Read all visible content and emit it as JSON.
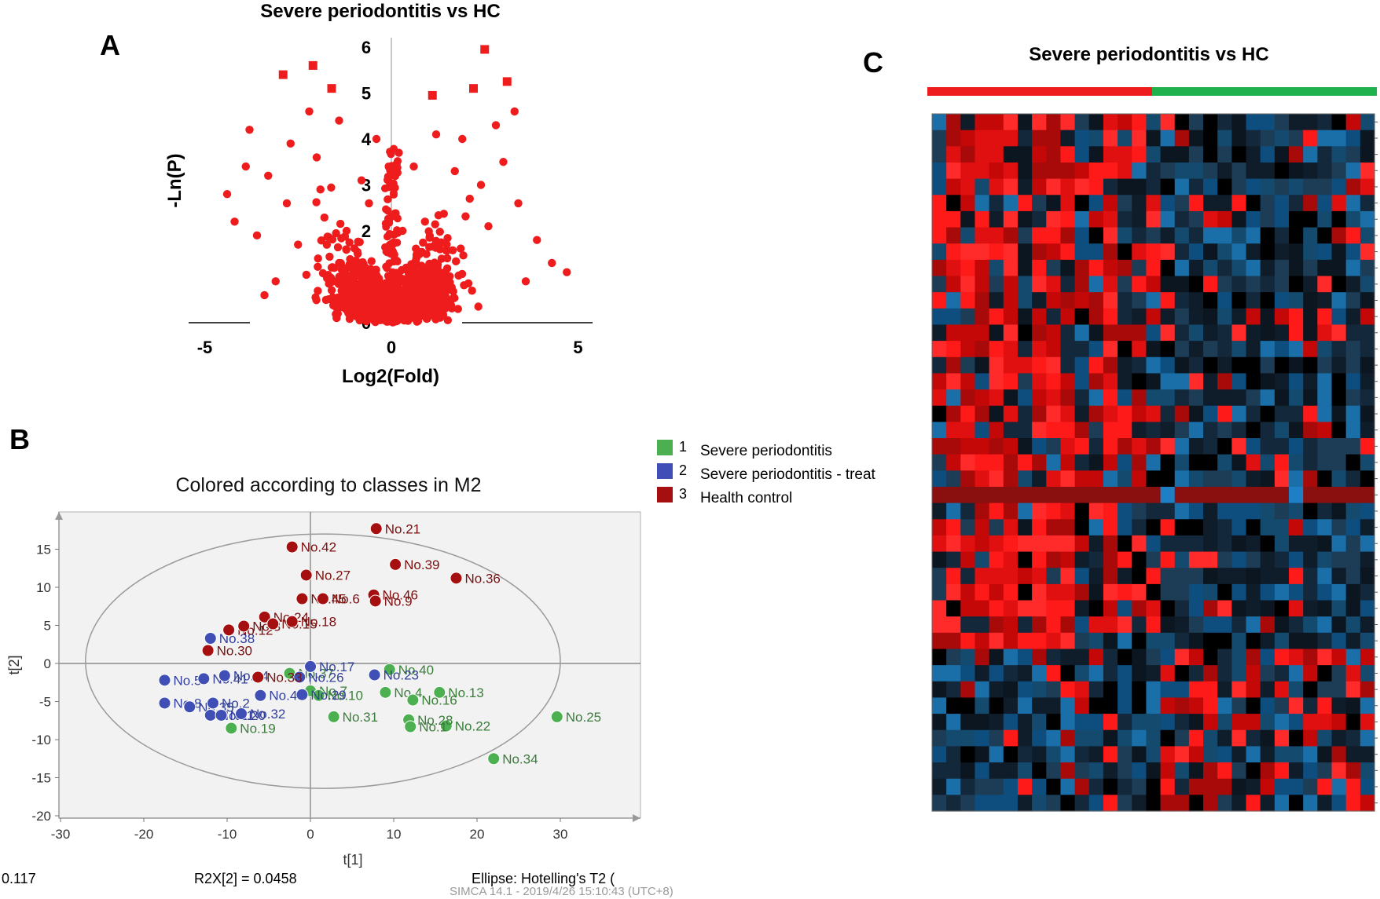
{
  "panels": {
    "a": {
      "letter": "A",
      "title": "Severe periodontitis vs HC",
      "xlabel": "Log2(Fold)",
      "ylabel": "-Ln(P)"
    },
    "b": {
      "letter": "B",
      "title": "Colored according to classes in M2",
      "xlabel": "t[1]",
      "ylabel": "t[2]",
      "footer_left": "0.117",
      "footer_mid": "R2X[2] = 0.0458",
      "footer_right": "Ellipse: Hotelling's T2 (",
      "stamp": "SIMCA 14.1 - 2019/4/26 15:10:43 (UTC+8)"
    },
    "c": {
      "letter": "C",
      "title": "Severe periodontitis vs HC"
    }
  },
  "colors": {
    "volcano_red": "#ee1c1c",
    "group1": "#4caf50",
    "group2": "#3f4fb5",
    "group3": "#a50f0f",
    "label1": "#3b7d3b",
    "label2": "#33409a",
    "label3": "#7a1010",
    "hm_red": "#ff1a1a",
    "hm_dark": "#0f1c2a",
    "hm_blue": "#0d4e7e",
    "bar_red": "#ee1c1c",
    "bar_green": "#1fb14b"
  },
  "chart_data": [
    {
      "type": "scatter",
      "panel": "A",
      "title": "Severe periodontitis vs HC",
      "xlabel": "Log2(Fold)",
      "ylabel": "-Ln(P)",
      "xlim": [
        -5,
        5
      ],
      "ylim": [
        0,
        6
      ],
      "xticks": [
        "-5",
        "0",
        "5"
      ],
      "yticks": [
        "0",
        "1",
        "2",
        "3",
        "4",
        "5",
        "6"
      ],
      "highlighted_points": [
        [
          -2.9,
          5.4
        ],
        [
          -2.1,
          5.6
        ],
        [
          -1.6,
          5.1
        ],
        [
          2.5,
          5.95
        ],
        [
          3.1,
          5.25
        ],
        [
          2.2,
          5.1
        ],
        [
          1.1,
          4.95
        ]
      ],
      "points": [
        [
          -3.3,
          3.2
        ],
        [
          -3.9,
          3.4
        ],
        [
          -4.2,
          2.2
        ],
        [
          -3.6,
          1.9
        ],
        [
          -2.8,
          2.6
        ],
        [
          -2.5,
          1.7
        ],
        [
          -1.9,
          2.9
        ],
        [
          -1.2,
          2.0
        ],
        [
          -0.8,
          3.1
        ],
        [
          -2.2,
          4.6
        ],
        [
          -3.8,
          4.2
        ],
        [
          -1.4,
          4.4
        ],
        [
          -0.6,
          2.6
        ],
        [
          -2.0,
          3.6
        ],
        [
          -1.6,
          1.2
        ],
        [
          -0.9,
          1.5
        ],
        [
          -3.1,
          0.9
        ],
        [
          -4.4,
          2.8
        ],
        [
          -2.7,
          3.9
        ],
        [
          -0.4,
          4.0
        ],
        [
          0.3,
          2.0
        ],
        [
          0.6,
          3.4
        ],
        [
          0.9,
          2.2
        ],
        [
          1.3,
          1.6
        ],
        [
          1.7,
          3.3
        ],
        [
          2.1,
          2.7
        ],
        [
          2.6,
          2.1
        ],
        [
          3.0,
          3.5
        ],
        [
          3.4,
          2.6
        ],
        [
          3.9,
          1.8
        ],
        [
          4.3,
          1.3
        ],
        [
          4.7,
          1.1
        ],
        [
          1.9,
          4.0
        ],
        [
          2.8,
          4.3
        ],
        [
          1.2,
          4.1
        ],
        [
          3.3,
          4.6
        ],
        [
          2.4,
          3.0
        ],
        [
          0.4,
          1.2
        ],
        [
          1.0,
          0.7
        ],
        [
          -1.0,
          0.6
        ],
        [
          0.2,
          3.7
        ],
        [
          -0.2,
          0.5
        ],
        [
          -3.4,
          0.6
        ],
        [
          3.6,
          0.9
        ]
      ]
    },
    {
      "type": "scatter",
      "panel": "B",
      "title": "Colored according to classes in M2",
      "xlabel": "t[1]",
      "ylabel": "t[2]",
      "xlim": [
        -30,
        40
      ],
      "ylim": [
        -20,
        20
      ],
      "xticks": [
        "-30",
        "-20",
        "-10",
        "0",
        "10",
        "20",
        "30"
      ],
      "yticks": [
        "-20",
        "-15",
        "-10",
        "-5",
        "0",
        "5",
        "10",
        "15"
      ],
      "legend": [
        {
          "num": "1",
          "label": "Severe   periodontitis"
        },
        {
          "num": "2",
          "label": "Severe   periodontitis  - treat"
        },
        {
          "num": "3",
          "label": "Health   control"
        }
      ],
      "series": [
        {
          "name": "Severe   periodontitis",
          "points": [
            {
              "label": "No.40",
              "x": 9.5,
              "y": -0.8
            },
            {
              "label": "No.4",
              "x": 9.0,
              "y": -3.8
            },
            {
              "label": "No.13",
              "x": 15.5,
              "y": -3.8
            },
            {
              "label": "No.16",
              "x": 12.3,
              "y": -4.8
            },
            {
              "label": "No.22",
              "x": 16.3,
              "y": -8.2
            },
            {
              "label": "No.28",
              "x": 11.8,
              "y": -7.4
            },
            {
              "label": "No.1",
              "x": 12.0,
              "y": -8.3
            },
            {
              "label": "No.34",
              "x": 22.0,
              "y": -12.5
            },
            {
              "label": "No.25",
              "x": 29.6,
              "y": -7.0
            },
            {
              "label": "No.7",
              "x": 0.0,
              "y": -3.6
            },
            {
              "label": "No.10",
              "x": 1.0,
              "y": -4.2
            },
            {
              "label": "No.31",
              "x": 2.8,
              "y": -7.0
            },
            {
              "label": "No.19",
              "x": -9.5,
              "y": -8.5
            },
            {
              "label": "No.37",
              "x": -2.5,
              "y": -1.3
            }
          ]
        },
        {
          "name": "Severe   periodontitis  - treat",
          "points": [
            {
              "label": "No.38",
              "x": -12.0,
              "y": 3.3
            },
            {
              "label": "No.5",
              "x": -17.5,
              "y": -2.2
            },
            {
              "label": "No.41",
              "x": -12.8,
              "y": -2.0
            },
            {
              "label": "No.14",
              "x": -10.3,
              "y": -1.6
            },
            {
              "label": "No.8",
              "x": -17.5,
              "y": -5.2
            },
            {
              "label": "No.35",
              "x": -14.5,
              "y": -5.7
            },
            {
              "label": "No.2",
              "x": -11.7,
              "y": -5.2
            },
            {
              "label": "No.11",
              "x": -12.0,
              "y": -6.8
            },
            {
              "label": "No.20",
              "x": -10.7,
              "y": -6.8
            },
            {
              "label": "No.32",
              "x": -8.3,
              "y": -6.6
            },
            {
              "label": "No.44",
              "x": -6.0,
              "y": -4.2
            },
            {
              "label": "No.26",
              "x": -1.3,
              "y": -1.8
            },
            {
              "label": "No.17",
              "x": 0.0,
              "y": -0.4
            },
            {
              "label": "No.23",
              "x": 7.7,
              "y": -1.5
            },
            {
              "label": "No.29",
              "x": -1.0,
              "y": -4.1
            }
          ]
        },
        {
          "name": "Health   control",
          "points": [
            {
              "label": "No.21",
              "x": 7.9,
              "y": 17.7
            },
            {
              "label": "No.42",
              "x": -2.2,
              "y": 15.3
            },
            {
              "label": "No.39",
              "x": 10.2,
              "y": 13.0
            },
            {
              "label": "No.36",
              "x": 17.5,
              "y": 11.2
            },
            {
              "label": "No.27",
              "x": -0.5,
              "y": 11.6
            },
            {
              "label": "No.46",
              "x": 7.6,
              "y": 9.0
            },
            {
              "label": "No.9",
              "x": 7.8,
              "y": 8.2
            },
            {
              "label": "No.45",
              "x": -1.0,
              "y": 8.5
            },
            {
              "label": "No.6",
              "x": 1.5,
              "y": 8.5
            },
            {
              "label": "No.12",
              "x": -9.8,
              "y": 4.4
            },
            {
              "label": "No.3",
              "x": -8.0,
              "y": 4.9
            },
            {
              "label": "No.24",
              "x": -5.5,
              "y": 6.1
            },
            {
              "label": "No.15",
              "x": -4.5,
              "y": 5.2
            },
            {
              "label": "No.18",
              "x": -2.2,
              "y": 5.5
            },
            {
              "label": "No.30",
              "x": -12.3,
              "y": 1.7
            },
            {
              "label": "No.33",
              "x": -6.3,
              "y": -1.8
            }
          ]
        }
      ]
    },
    {
      "type": "heatmap",
      "panel": "C",
      "title": "Severe periodontitis vs HC",
      "group_bar": [
        "red",
        "green"
      ],
      "rows": 43,
      "cols": 31,
      "group_split_col": 16
    }
  ]
}
